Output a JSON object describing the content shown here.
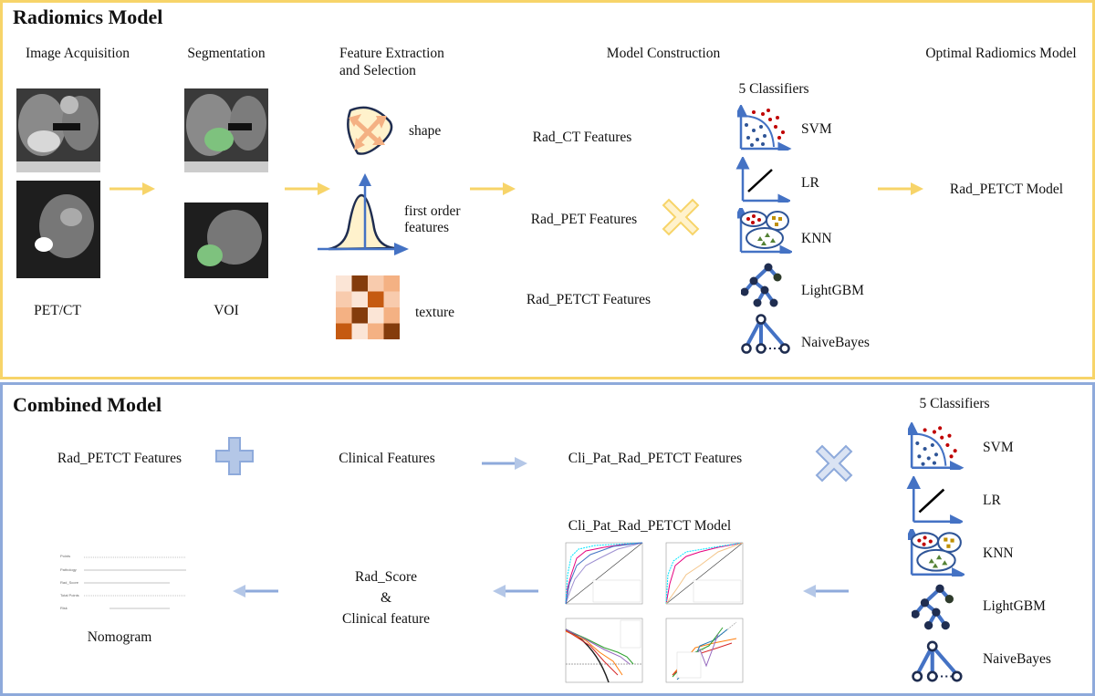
{
  "radiomics": {
    "title": "Radiomics Model",
    "steps": {
      "acquisition": "Image Acquisition",
      "segmentation": "Segmentation",
      "feature_line1": "Feature Extraction",
      "feature_line2": "and Selection",
      "model_construction": "Model Construction",
      "optimal": "Optimal Radiomics Model"
    },
    "image_label_petct": "PET/CT",
    "image_label_voi": "VOI",
    "feature_types": {
      "shape": "shape",
      "first_order_1": "first order",
      "first_order_2": "features",
      "texture": "texture"
    },
    "feature_sets": [
      "Rad_CT Features",
      "Rad_PET Features",
      "Rad_PETCT Features"
    ],
    "classifiers_title": "5 Classifiers",
    "classifiers": [
      "SVM",
      "LR",
      "KNN",
      "LightGBM",
      "NaiveBayes"
    ],
    "result": "Rad_PETCT Model"
  },
  "combined": {
    "title": "Combined Model",
    "rad_features": "Rad_PETCT Features",
    "clinical_features": "Clinical Features",
    "combined_features": "Cli_Pat_Rad_PETCT Features",
    "classifiers_title": "5 Classifiers",
    "classifiers": [
      "SVM",
      "LR",
      "KNN",
      "LightGBM",
      "NaiveBayes"
    ],
    "model": "Cli_Pat_Rad_PETCT Model",
    "radscore_1": "Rad_Score",
    "radscore_2": "&",
    "radscore_3": "Clinical feature",
    "nomogram": "Nomogram",
    "nomogram_rows": [
      "Points",
      "Pathology",
      "Rad_Score",
      "Total Points",
      "Risk"
    ]
  },
  "colors": {
    "yellow": "#f7d469",
    "blue": "#8eaadb",
    "icon_blue": "#4472c4"
  }
}
